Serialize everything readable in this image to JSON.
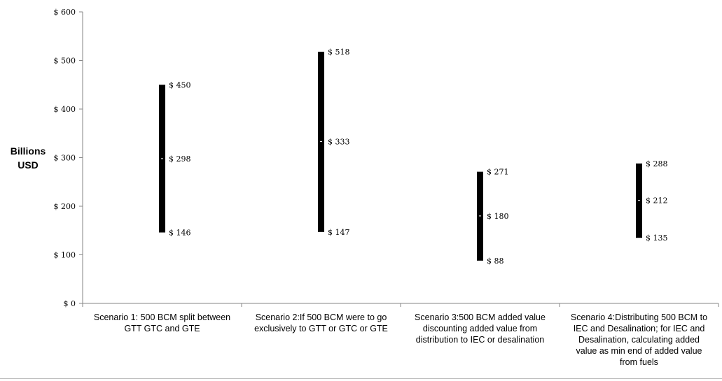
{
  "chart_data": {
    "type": "bar",
    "subtype": "floating-range",
    "ylabel": "Billions USD",
    "ylabel_lines": [
      "Billions",
      "USD"
    ],
    "ylim": [
      0,
      600
    ],
    "ytick_step": 100,
    "ytick_prefix": "$ ",
    "grid": false,
    "legend": "none",
    "bar_color": "#000000",
    "categories": [
      "Scenario 1: 500 BCM split between GTT GTC and GTE",
      "Scenario 2:If 500 BCM were to go exclusively to GTT or GTC or GTE",
      "Scenario 3:500 BCM added value discounting added value from distribution to IEC or desalination",
      "Scenario 4:Distributing 500 BCM to IEC and Desalination; for IEC and Desalination, calculating added value as min end of added value from fuels"
    ],
    "category_lines": [
      [
        "Scenario 1: 500 BCM split between",
        "GTT GTC and GTE"
      ],
      [
        "Scenario 2:If 500 BCM were to go",
        "exclusively to GTT or GTC or GTE"
      ],
      [
        "Scenario 3:500 BCM added value",
        "discounting added value from",
        "distribution to IEC or desalination"
      ],
      [
        "Scenario 4:Distributing 500 BCM to",
        "IEC and Desalination; for IEC and",
        "Desalination, calculating added",
        "value as min end of added value",
        "from fuels"
      ]
    ],
    "high": [
      450,
      518,
      271,
      288
    ],
    "mid": [
      298,
      333,
      180,
      212
    ],
    "low": [
      146,
      147,
      88,
      135
    ],
    "high_labels": [
      "$ 450",
      "$ 518",
      "$ 271",
      "$ 288"
    ],
    "mid_labels": [
      "$ 298",
      "$ 333",
      "$ 180",
      "$ 212"
    ],
    "low_labels": [
      "$ 146",
      "$ 147",
      "$ 88",
      "$ 135"
    ]
  }
}
